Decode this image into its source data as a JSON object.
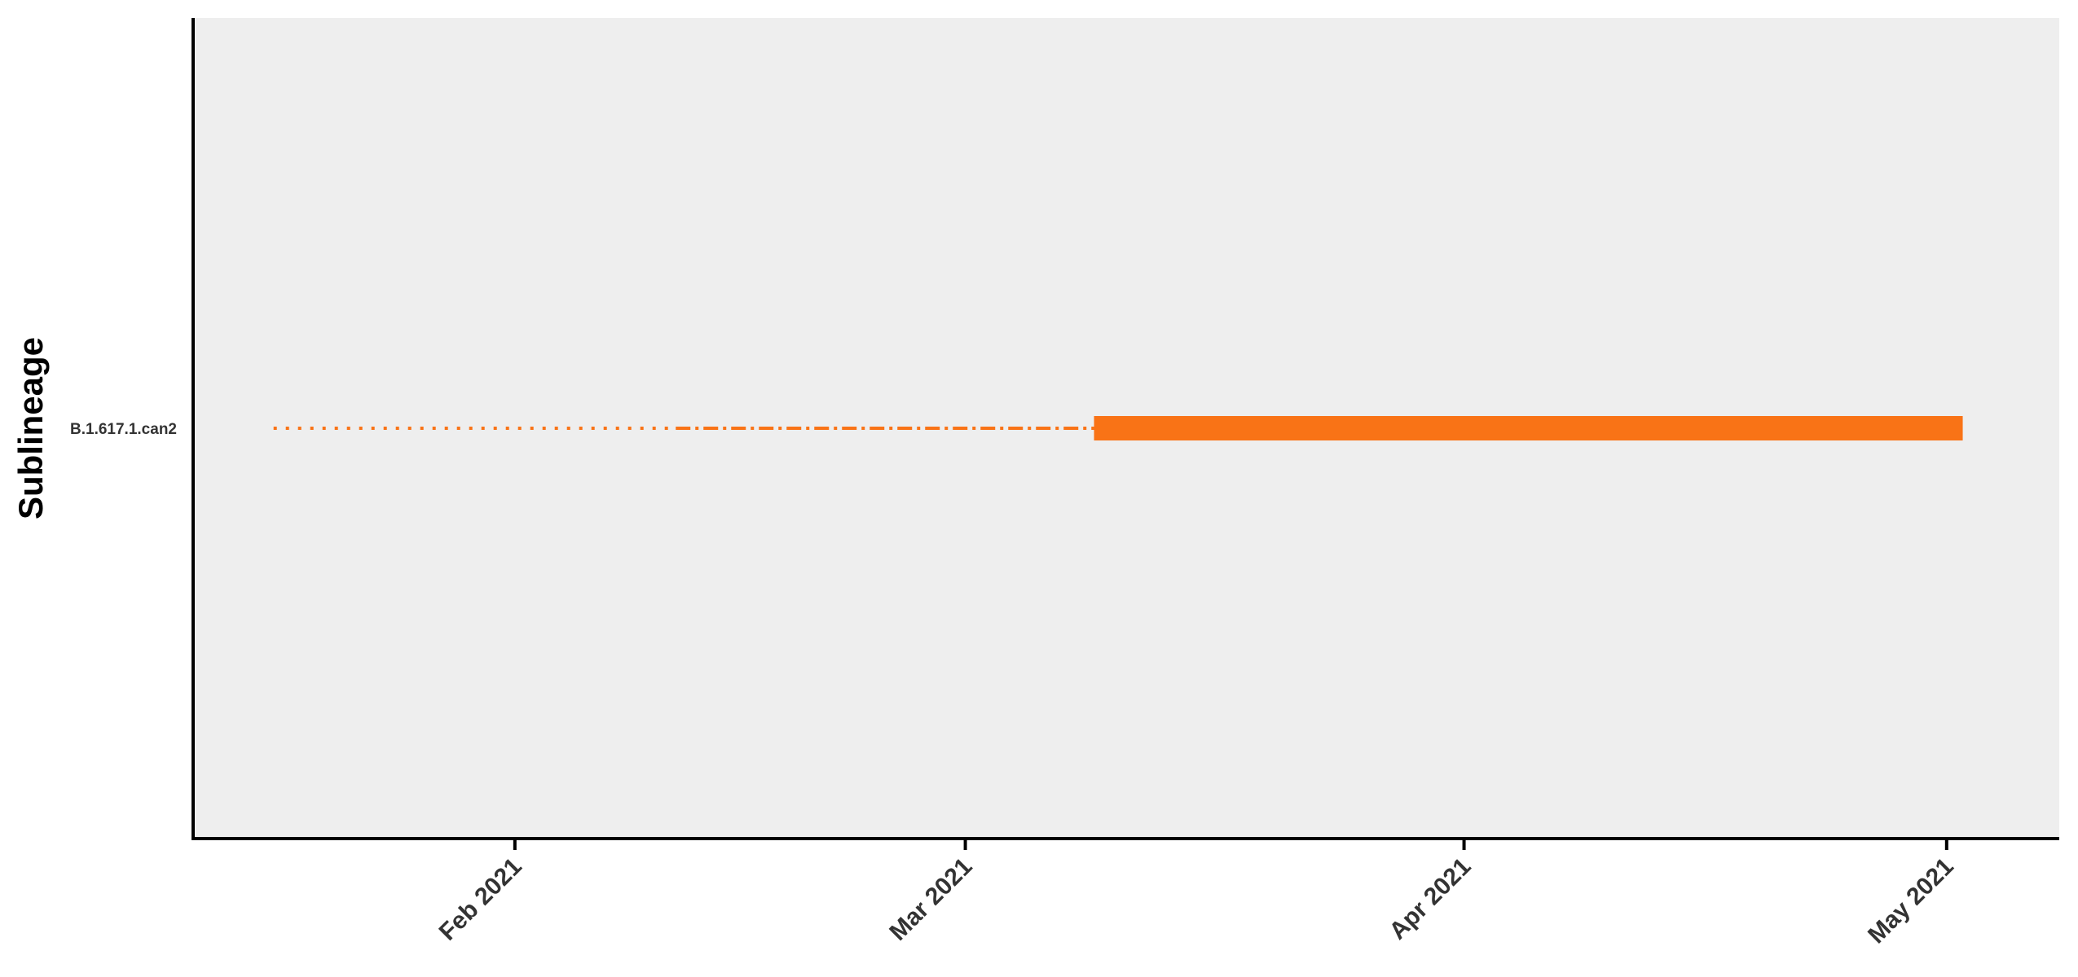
{
  "chart_data": {
    "type": "timeline",
    "title": "",
    "xlabel": "",
    "ylabel": "Sublineage",
    "x_axis": {
      "type": "date",
      "range": [
        "2021-01-12",
        "2021-05-08"
      ],
      "ticks": [
        {
          "date": "2021-02-01",
          "label": "Feb 2021"
        },
        {
          "date": "2021-03-01",
          "label": "Mar 2021"
        },
        {
          "date": "2021-04-01",
          "label": "Apr 2021"
        },
        {
          "date": "2021-05-01",
          "label": "May 2021"
        }
      ],
      "tick_label_rotation": -45
    },
    "categories": [
      "B.1.617.1.can2"
    ],
    "series": [
      {
        "category": "B.1.617.1.can2",
        "segments": [
          {
            "style": "dotted",
            "start": "2021-01-17",
            "end": "2021-02-11"
          },
          {
            "style": "dashdot",
            "start": "2021-02-11",
            "end": "2021-03-09"
          },
          {
            "style": "solid-thick",
            "start": "2021-03-09",
            "end": "2021-05-02"
          }
        ]
      }
    ],
    "colors": {
      "line": "#f97316",
      "panel_background": "#eeeeee",
      "axis": "#000000"
    },
    "grid": false,
    "legend": "none"
  }
}
